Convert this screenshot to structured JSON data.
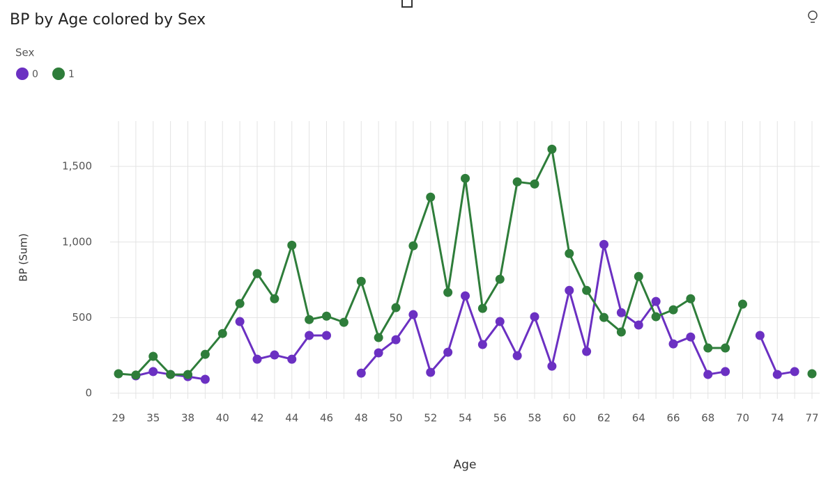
{
  "chart_data": {
    "type": "line",
    "title": "BP by Age colored by Sex",
    "legend_title": "Sex",
    "legend": "top-left",
    "x_label": "Age",
    "y_label": "BP (Sum)",
    "categories": [
      "29",
      null,
      "35",
      null,
      "38",
      null,
      "40",
      null,
      "42",
      null,
      "44",
      null,
      "46",
      null,
      "48",
      null,
      "50",
      null,
      "52",
      null,
      "54",
      null,
      "56",
      null,
      "58",
      null,
      "60",
      null,
      "62",
      null,
      "64",
      null,
      "66",
      null,
      "68",
      null,
      "70",
      null,
      "74",
      null,
      "77"
    ],
    "series": [
      {
        "name": "0",
        "color": "#6b30c2",
        "values": [
          null,
          115,
          143,
          124,
          110,
          92,
          null,
          474,
          225,
          253,
          225,
          382,
          382,
          null,
          133,
          267,
          354,
          520,
          138,
          271,
          644,
          322,
          474,
          248,
          506,
          179,
          680,
          276,
          984,
          533,
          451,
          607,
          326,
          372,
          124,
          143,
          null,
          382,
          124,
          143,
          null
        ]
      },
      {
        "name": "1",
        "color": "#2e7d3a",
        "values": [
          129,
          120,
          244,
          124,
          124,
          257,
          395,
          593,
          791,
          625,
          979,
          487,
          510,
          469,
          740,
          368,
          566,
          975,
          1297,
          667,
          1421,
          561,
          754,
          1398,
          1384,
          1614,
          924,
          680,
          501,
          405,
          772,
          506,
          552,
          625,
          299,
          299,
          589,
          null,
          null,
          null,
          129
        ]
      }
    ],
    "ylim": [
      0,
      1800
    ],
    "yticks": [
      0,
      500,
      {
        "value": 1000,
        "label": "1,000"
      },
      {
        "value": 1500,
        "label": "1,500"
      }
    ],
    "grid": true
  }
}
